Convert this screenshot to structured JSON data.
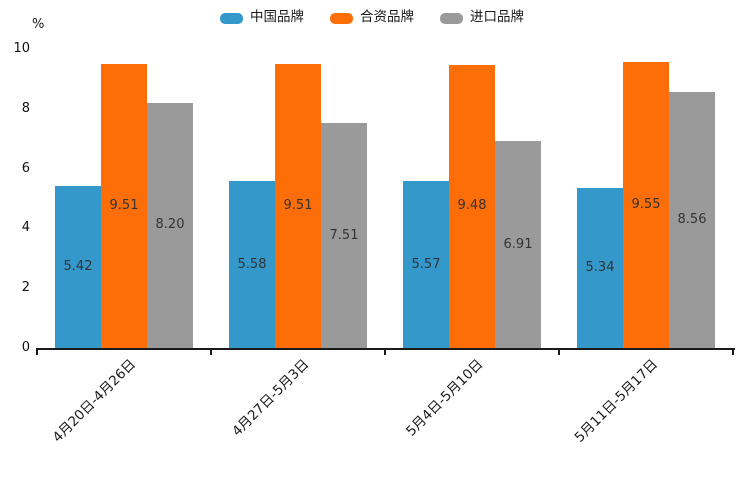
{
  "chart_data": {
    "type": "bar",
    "title": "",
    "unit_label": "%",
    "categories": [
      "4月20日-4月26日",
      "4月27日-5月3日",
      "5月4日-5月10日",
      "5月11日-5月17日"
    ],
    "series": [
      {
        "name": "中国品牌",
        "color": "#3498cb",
        "values": [
          5.42,
          5.58,
          5.57,
          5.34
        ]
      },
      {
        "name": "合资品牌",
        "color": "#fd6e09",
        "values": [
          9.51,
          9.51,
          9.48,
          9.55
        ]
      },
      {
        "name": "进口品牌",
        "color": "#9a9a9a",
        "values": [
          8.2,
          7.51,
          6.91,
          8.56
        ]
      }
    ],
    "ylim": [
      0,
      10
    ],
    "yticks": [
      0,
      2,
      4,
      6,
      8,
      10
    ],
    "grid": false,
    "legend_position": "top",
    "value_labels": true,
    "value_label_decimals": 2
  }
}
